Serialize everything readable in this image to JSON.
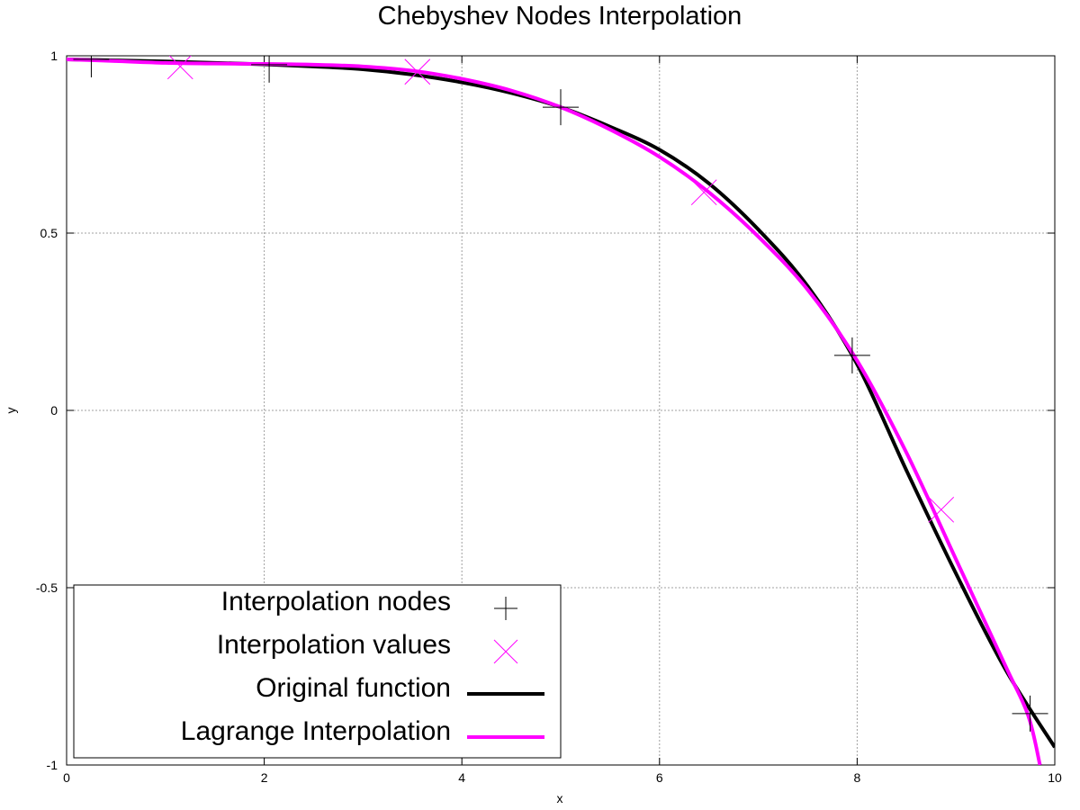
{
  "chart_data": {
    "type": "line",
    "title": "Chebyshev Nodes Interpolation",
    "xlabel": "x",
    "ylabel": "y",
    "xlim": [
      0,
      10
    ],
    "ylim": [
      -1,
      1
    ],
    "x_ticks": [
      0,
      2,
      4,
      6,
      8,
      10
    ],
    "y_ticks": [
      1,
      0.5,
      0,
      -0.5,
      -1
    ],
    "y_tick_labels": [
      "1",
      "0.5",
      "0",
      "-0.5",
      "-1"
    ],
    "grid": true,
    "legend_position": "bottom-left",
    "series": [
      {
        "name": "Original function",
        "kind": "line",
        "color": "#000000",
        "x": [
          0,
          0.5,
          1,
          1.5,
          2,
          2.5,
          3,
          3.5,
          4,
          4.5,
          5,
          5.5,
          6,
          6.5,
          7,
          7.5,
          8,
          8.5,
          9,
          9.5,
          10
        ],
        "y": [
          0.99,
          0.987,
          0.984,
          0.98,
          0.976,
          0.97,
          0.962,
          0.947,
          0.925,
          0.895,
          0.855,
          0.8,
          0.735,
          0.64,
          0.51,
          0.35,
          0.13,
          -0.17,
          -0.46,
          -0.73,
          -0.95
        ]
      },
      {
        "name": "Lagrange Interpolation",
        "kind": "line",
        "color": "#ff00ff",
        "x": [
          0,
          0.5,
          1,
          1.5,
          2,
          2.5,
          3,
          3.5,
          4,
          4.5,
          5,
          5.5,
          6,
          6.5,
          7,
          7.5,
          8,
          8.5,
          9,
          9.5,
          9.73,
          9.85
        ],
        "y": [
          0.99,
          0.985,
          0.98,
          0.978,
          0.977,
          0.975,
          0.97,
          0.958,
          0.935,
          0.902,
          0.855,
          0.792,
          0.715,
          0.615,
          0.49,
          0.34,
          0.14,
          -0.12,
          -0.42,
          -0.72,
          -0.86,
          -1.0
        ]
      },
      {
        "name": "Interpolation nodes",
        "kind": "points",
        "marker": "plus",
        "color": "#000000",
        "x": [
          0.25,
          2.05,
          5.0,
          7.95,
          9.75
        ],
        "y": [
          0.99,
          0.975,
          0.855,
          0.155,
          -0.855
        ]
      },
      {
        "name": "Interpolation values",
        "kind": "points",
        "marker": "cross",
        "color": "#ff00ff",
        "x": [
          1.15,
          3.55,
          6.45,
          8.85
        ],
        "y": [
          0.97,
          0.955,
          0.615,
          -0.28
        ]
      }
    ],
    "legend": [
      {
        "label": "Interpolation nodes",
        "marker": "plus",
        "color": "#000000"
      },
      {
        "label": "Interpolation values",
        "marker": "cross",
        "color": "#ff00ff"
      },
      {
        "label": "Original function",
        "marker": "line",
        "color": "#000000"
      },
      {
        "label": "Lagrange Interpolation",
        "marker": "line",
        "color": "#ff00ff"
      }
    ]
  }
}
